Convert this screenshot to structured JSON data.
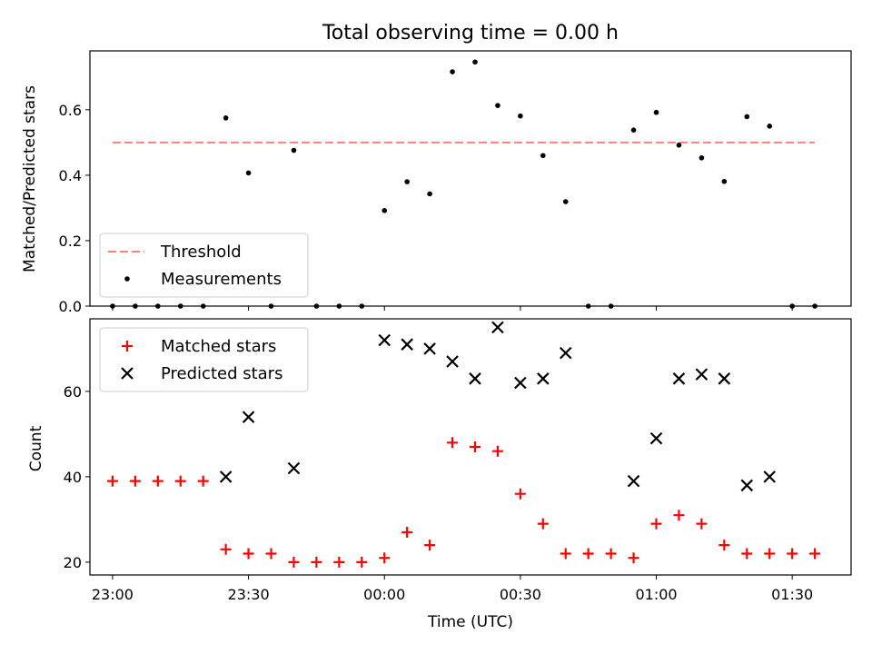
{
  "chart_data": [
    {
      "type": "scatter",
      "title": "Total observing time = 0.00 h",
      "xlabel": "",
      "ylabel": "Matched/Predicted stars",
      "ylim": [
        0,
        0.78
      ],
      "yticks": [
        "0.0",
        "0.2",
        "0.4",
        "0.6"
      ],
      "legend_position": "lower-left",
      "threshold": {
        "name": "Threshold",
        "value": 0.5,
        "color": "#ff7f7f",
        "style": "dashed"
      },
      "series": [
        {
          "name": "Measurements",
          "color": "#000000",
          "marker": "dot",
          "points": [
            {
              "x": "23:00",
              "y": 0.0
            },
            {
              "x": "23:05",
              "y": 0.0
            },
            {
              "x": "23:10",
              "y": 0.0
            },
            {
              "x": "23:15",
              "y": 0.0
            },
            {
              "x": "23:20",
              "y": 0.0
            },
            {
              "x": "23:25",
              "y": 0.575
            },
            {
              "x": "23:30",
              "y": 0.407
            },
            {
              "x": "23:35",
              "y": 0.0
            },
            {
              "x": "23:40",
              "y": 0.476
            },
            {
              "x": "23:45",
              "y": 0.0
            },
            {
              "x": "23:50",
              "y": 0.0
            },
            {
              "x": "23:55",
              "y": 0.0
            },
            {
              "x": "00:00",
              "y": 0.292
            },
            {
              "x": "00:05",
              "y": 0.38
            },
            {
              "x": "00:10",
              "y": 0.343
            },
            {
              "x": "00:15",
              "y": 0.716
            },
            {
              "x": "00:20",
              "y": 0.746
            },
            {
              "x": "00:25",
              "y": 0.613
            },
            {
              "x": "00:30",
              "y": 0.581
            },
            {
              "x": "00:35",
              "y": 0.46
            },
            {
              "x": "00:40",
              "y": 0.319
            },
            {
              "x": "00:45",
              "y": 0.0
            },
            {
              "x": "00:50",
              "y": 0.0
            },
            {
              "x": "00:55",
              "y": 0.538
            },
            {
              "x": "01:00",
              "y": 0.592
            },
            {
              "x": "01:05",
              "y": 0.492
            },
            {
              "x": "01:10",
              "y": 0.453
            },
            {
              "x": "01:15",
              "y": 0.381
            },
            {
              "x": "01:20",
              "y": 0.579
            },
            {
              "x": "01:25",
              "y": 0.55
            },
            {
              "x": "01:30",
              "y": 0.0
            },
            {
              "x": "01:35",
              "y": 0.0
            }
          ]
        }
      ]
    },
    {
      "type": "scatter",
      "title": "",
      "xlabel": "Time (UTC)",
      "ylabel": "Count",
      "ylim": [
        17,
        77
      ],
      "yticks": [
        "20",
        "40",
        "60"
      ],
      "xticks": [
        "23:00",
        "23:30",
        "00:00",
        "00:30",
        "01:00",
        "01:30"
      ],
      "legend_position": "upper-left",
      "series": [
        {
          "name": "Matched stars",
          "color": "#ff0000",
          "marker": "plus",
          "points": [
            {
              "x": "23:00",
              "y": 39
            },
            {
              "x": "23:05",
              "y": 39
            },
            {
              "x": "23:10",
              "y": 39
            },
            {
              "x": "23:15",
              "y": 39
            },
            {
              "x": "23:20",
              "y": 39
            },
            {
              "x": "23:25",
              "y": 23
            },
            {
              "x": "23:30",
              "y": 22
            },
            {
              "x": "23:35",
              "y": 22
            },
            {
              "x": "23:40",
              "y": 20
            },
            {
              "x": "23:45",
              "y": 20
            },
            {
              "x": "23:50",
              "y": 20
            },
            {
              "x": "23:55",
              "y": 20
            },
            {
              "x": "00:00",
              "y": 21
            },
            {
              "x": "00:05",
              "y": 27
            },
            {
              "x": "00:10",
              "y": 24
            },
            {
              "x": "00:15",
              "y": 48
            },
            {
              "x": "00:20",
              "y": 47
            },
            {
              "x": "00:25",
              "y": 46
            },
            {
              "x": "00:30",
              "y": 36
            },
            {
              "x": "00:35",
              "y": 29
            },
            {
              "x": "00:40",
              "y": 22
            },
            {
              "x": "00:45",
              "y": 22
            },
            {
              "x": "00:50",
              "y": 22
            },
            {
              "x": "00:55",
              "y": 21
            },
            {
              "x": "01:00",
              "y": 29
            },
            {
              "x": "01:05",
              "y": 31
            },
            {
              "x": "01:10",
              "y": 29
            },
            {
              "x": "01:15",
              "y": 24
            },
            {
              "x": "01:20",
              "y": 22
            },
            {
              "x": "01:25",
              "y": 22
            },
            {
              "x": "01:30",
              "y": 22
            },
            {
              "x": "01:35",
              "y": 22
            }
          ]
        },
        {
          "name": "Predicted stars",
          "color": "#000000",
          "marker": "x",
          "points": [
            {
              "x": "23:25",
              "y": 40
            },
            {
              "x": "23:30",
              "y": 54
            },
            {
              "x": "23:40",
              "y": 42
            },
            {
              "x": "00:00",
              "y": 72
            },
            {
              "x": "00:05",
              "y": 71
            },
            {
              "x": "00:10",
              "y": 70
            },
            {
              "x": "00:15",
              "y": 67
            },
            {
              "x": "00:20",
              "y": 63
            },
            {
              "x": "00:25",
              "y": 75
            },
            {
              "x": "00:30",
              "y": 62
            },
            {
              "x": "00:35",
              "y": 63
            },
            {
              "x": "00:40",
              "y": 69
            },
            {
              "x": "00:55",
              "y": 39
            },
            {
              "x": "01:00",
              "y": 49
            },
            {
              "x": "01:05",
              "y": 63
            },
            {
              "x": "01:10",
              "y": 64
            },
            {
              "x": "01:15",
              "y": 63
            },
            {
              "x": "01:20",
              "y": 38
            },
            {
              "x": "01:25",
              "y": 40
            }
          ]
        }
      ]
    }
  ]
}
